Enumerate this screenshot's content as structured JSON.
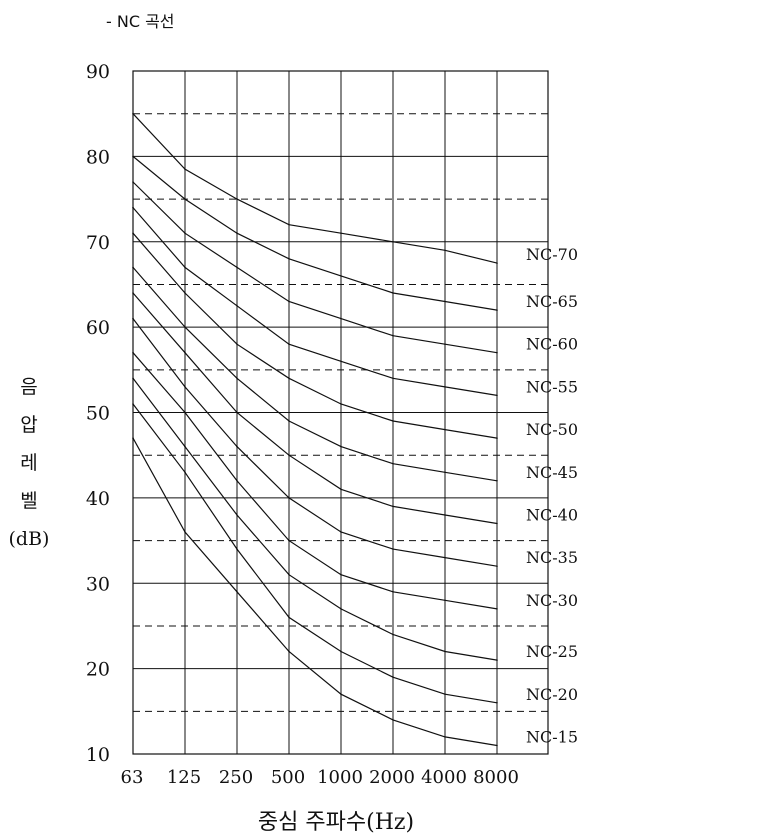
{
  "page": {
    "heading": "- NC 곡선"
  },
  "chart_data": {
    "type": "line",
    "title": "- NC 곡선",
    "xlabel": "중심 주파수(Hz)",
    "ylabel": "음압레벨 (dB)",
    "ylabel_chars": [
      "음",
      "압",
      "레",
      "벨",
      "(dB)"
    ],
    "categories": [
      "63",
      "125",
      "250",
      "500",
      "1000",
      "2000",
      "4000",
      "8000"
    ],
    "ylim": [
      10,
      90
    ],
    "yticks": [
      90,
      80,
      70,
      60,
      50,
      40,
      30,
      20,
      10
    ],
    "grid": {
      "solid_every": 10,
      "dashed_between": true
    },
    "series": [
      {
        "name": "NC-70",
        "values": [
          85,
          78.5,
          75,
          72,
          71,
          70,
          69,
          67.5
        ]
      },
      {
        "name": "NC-65",
        "values": [
          80,
          75,
          71,
          68,
          66,
          64,
          63,
          62
        ]
      },
      {
        "name": "NC-60",
        "values": [
          77,
          71,
          67,
          63,
          61,
          59,
          58,
          57
        ]
      },
      {
        "name": "NC-55",
        "values": [
          74,
          67,
          62.5,
          58,
          56,
          54,
          53,
          52
        ]
      },
      {
        "name": "NC-50",
        "values": [
          71,
          64,
          58,
          54,
          51,
          49,
          48,
          47
        ]
      },
      {
        "name": "NC-45",
        "values": [
          67,
          60,
          54,
          49,
          46,
          44,
          43,
          42
        ]
      },
      {
        "name": "NC-40",
        "values": [
          64,
          57,
          50,
          45,
          41,
          39,
          38,
          37
        ]
      },
      {
        "name": "NC-35",
        "values": [
          61,
          53,
          46,
          40,
          36,
          34,
          33,
          32
        ]
      },
      {
        "name": "NC-30",
        "values": [
          57,
          50,
          42,
          35,
          31,
          29,
          28,
          27
        ]
      },
      {
        "name": "NC-25",
        "values": [
          54,
          46,
          38,
          31,
          27,
          24,
          22,
          21
        ]
      },
      {
        "name": "NC-20",
        "values": [
          51,
          43,
          34,
          26,
          22,
          19,
          17,
          16
        ]
      },
      {
        "name": "NC-15",
        "values": [
          47,
          36,
          29,
          22,
          17,
          14,
          12,
          11
        ]
      }
    ],
    "colors": {
      "line": "#111111",
      "background": "#ffffff"
    }
  }
}
